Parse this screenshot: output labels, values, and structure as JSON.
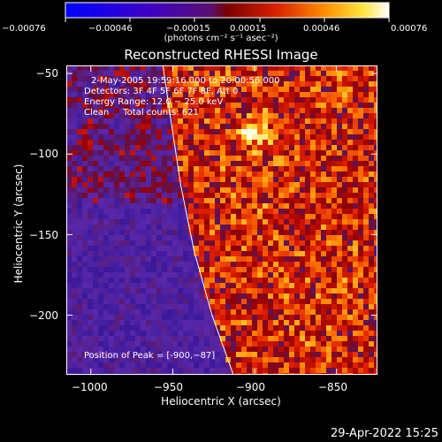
{
  "colorbar": {
    "tick_labels": [
      "-0.00076",
      "-0.00046",
      "-0.00015",
      "0.00015",
      "0.00046",
      "0.00076"
    ],
    "units": "(photons cm⁻² s⁻¹ asec⁻²)"
  },
  "chart_data": {
    "type": "heatmap",
    "title": "Reconstructed RHESSI Image",
    "xlabel": "Heliocentric X (arcsec)",
    "ylabel": "Heliocentric Y (arcsec)",
    "xlim": [
      -1015,
      -825
    ],
    "ylim": [
      -237,
      -45
    ],
    "x_ticks": [
      -1000,
      -950,
      -900,
      -850
    ],
    "y_ticks": [
      -200,
      -150,
      -100,
      -50
    ],
    "colorscale_range": [
      -0.00076,
      0.00076
    ],
    "peak_position": [
      -900,
      -87
    ],
    "limb_curve": [
      [
        -956,
        -45
      ],
      [
        -951,
        -80
      ],
      [
        -945,
        -120
      ],
      [
        -937,
        -160
      ],
      [
        -926,
        -200
      ],
      [
        -913,
        -237
      ]
    ],
    "annotations": [
      "2-May-2005 19:59:16.000 to 20:00:56.000",
      "Detectors: 3F 4F 5F 6F 7F 8F, Att 0",
      "Energy Range: 12.0 - 25.0 keV",
      "Clean     Total counts: 621",
      "Position of Peak = [-900,-87]"
    ],
    "grid": false
  },
  "footer": {
    "timestamp": "29-Apr-2022 15:25"
  }
}
